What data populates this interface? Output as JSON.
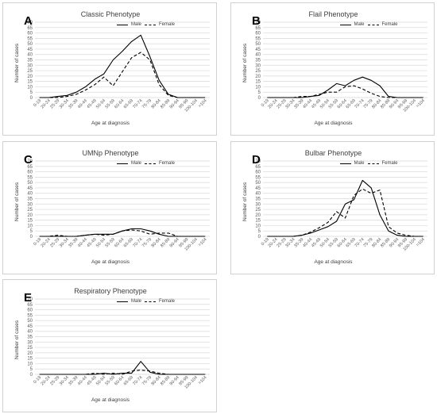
{
  "categories": [
    "0-19",
    "20-24",
    "25-29",
    "30-34",
    "35-39",
    "40-44",
    "45-49",
    "50-54",
    "55-59",
    "60-64",
    "65-69",
    "70-74",
    "75-79",
    "80-84",
    "85-89",
    "90-94",
    "95-99",
    "100-104",
    ">104"
  ],
  "y_ticks": [
    "0",
    "5",
    "10",
    "15",
    "20",
    "25",
    "30",
    "35",
    "40",
    "45",
    "50",
    "55",
    "60",
    "65",
    "70"
  ],
  "legend": {
    "male": "Male",
    "female": "Female"
  },
  "axis": {
    "xlabel": "Age at diagnosis",
    "ylabel": "Number of cases"
  },
  "colors": {
    "line": "#000000",
    "grid": "#d9d9d9",
    "border": "#d0d0d0"
  },
  "chart_data": [
    {
      "letter": "A",
      "type": "line",
      "title": "Classic Phenotype",
      "xlabel": "Age at diagnosis",
      "ylabel": "Number of cases",
      "ylim": [
        0,
        70
      ],
      "grid": true,
      "legend_position": "top-right",
      "series": [
        {
          "name": "Male",
          "style": "solid",
          "values": [
            0,
            0,
            1,
            2,
            5,
            10,
            17,
            22,
            35,
            43,
            52,
            58,
            38,
            16,
            3,
            0,
            0,
            0,
            0
          ]
        },
        {
          "name": "Female",
          "style": "dashed",
          "values": [
            0,
            0,
            0,
            1,
            3,
            7,
            12,
            19,
            11,
            24,
            37,
            42,
            35,
            12,
            2,
            0,
            0,
            0,
            0
          ]
        }
      ]
    },
    {
      "letter": "B",
      "type": "line",
      "title": "Flail Phenotype",
      "xlabel": "Age at diagnosis",
      "ylabel": "Number of cases",
      "ylim": [
        0,
        70
      ],
      "grid": true,
      "legend_position": "top-right",
      "series": [
        {
          "name": "Male",
          "style": "solid",
          "values": [
            0,
            0,
            0,
            0,
            0,
            1,
            2,
            7,
            13,
            11,
            16,
            19,
            16,
            11,
            1,
            0,
            0,
            0,
            0
          ]
        },
        {
          "name": "Female",
          "style": "dashed",
          "values": [
            0,
            0,
            0,
            0,
            1,
            1,
            3,
            5,
            5,
            10,
            11,
            8,
            4,
            1,
            0,
            0,
            0,
            0,
            0
          ]
        }
      ]
    },
    {
      "letter": "C",
      "type": "line",
      "title": "UMNp Phenotype",
      "xlabel": "Age at diagnosis",
      "ylabel": "Number of cases",
      "ylim": [
        0,
        70
      ],
      "grid": true,
      "legend_position": "top-right",
      "series": [
        {
          "name": "Male",
          "style": "solid",
          "values": [
            0,
            0,
            0,
            0,
            0,
            1,
            2,
            2,
            2,
            5,
            7,
            7,
            5,
            2,
            0,
            0,
            0,
            0,
            0
          ]
        },
        {
          "name": "Female",
          "style": "dashed",
          "values": [
            0,
            0,
            1,
            0,
            0,
            1,
            2,
            1,
            2,
            5,
            6,
            5,
            2,
            3,
            3,
            0,
            0,
            0,
            0
          ]
        }
      ]
    },
    {
      "letter": "D",
      "type": "line",
      "title": "Bulbar Phenotype",
      "xlabel": "Age at diagnosis",
      "ylabel": "Number of cases",
      "ylim": [
        0,
        70
      ],
      "grid": true,
      "legend_position": "top-right",
      "series": [
        {
          "name": "Male",
          "style": "solid",
          "values": [
            0,
            0,
            0,
            0,
            1,
            3,
            6,
            9,
            14,
            30,
            34,
            52,
            45,
            20,
            5,
            1,
            0,
            0,
            0
          ]
        },
        {
          "name": "Female",
          "style": "dashed",
          "values": [
            0,
            0,
            0,
            0,
            1,
            4,
            8,
            13,
            23,
            17,
            38,
            44,
            40,
            43,
            9,
            3,
            1,
            0,
            0
          ]
        }
      ]
    },
    {
      "letter": "E",
      "type": "line",
      "title": "Respiratory Phenotype",
      "xlabel": "Age at diagnosis",
      "ylabel": "Number of cases",
      "ylim": [
        0,
        70
      ],
      "grid": true,
      "legend_position": "top-right",
      "series": [
        {
          "name": "Male",
          "style": "solid",
          "values": [
            0,
            0,
            0,
            0,
            0,
            0,
            0,
            1,
            0,
            1,
            1,
            12,
            2,
            0,
            0,
            0,
            0,
            0,
            0
          ]
        },
        {
          "name": "Female",
          "style": "dashed",
          "values": [
            0,
            0,
            0,
            0,
            0,
            0,
            1,
            0,
            1,
            0,
            3,
            4,
            3,
            1,
            0,
            0,
            0,
            0,
            0
          ]
        }
      ]
    }
  ]
}
